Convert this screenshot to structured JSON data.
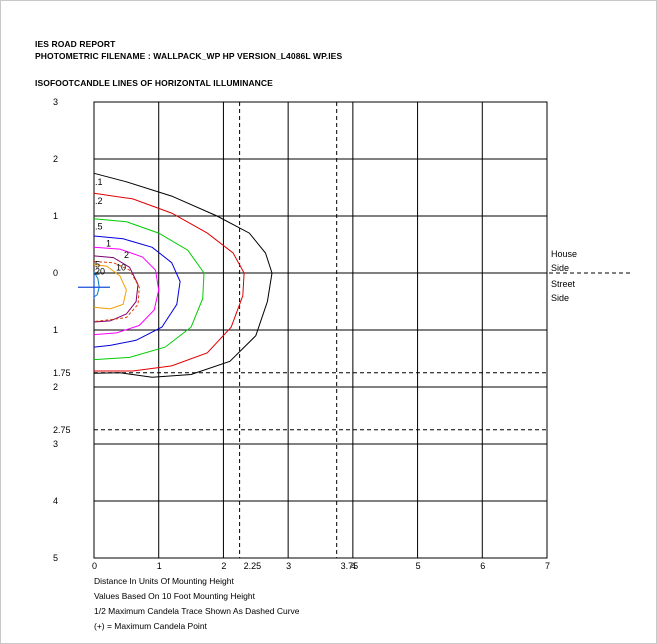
{
  "report": {
    "title": "IES ROAD REPORT",
    "photometric_filename": "PHOTOMETRIC FILENAME : WALLPACK_WP HP VERSION_L4086L WP.IES",
    "subtitle": "ISOFOOTCANDLE LINES OF HORIZONTAL ILLUMINANCE"
  },
  "notes": {
    "line1": "Distance In Units Of Mounting Height",
    "line2": "Values Based On 10 Foot Mounting Height",
    "line3": "1/2 Maximum Candela Trace Shown As Dashed Curve",
    "line4": "(+) = Maximum Candela Point"
  },
  "chart_data": {
    "type": "contour",
    "title": "ISOFOOTCANDLE LINES OF HORIZONTAL ILLUMINANCE",
    "x_range": [
      0,
      7
    ],
    "y_range": [
      -5,
      3
    ],
    "grid": true,
    "x_ticks": [
      "0",
      "1",
      "2",
      "3",
      "4",
      "5",
      "6",
      "7"
    ],
    "x_extra_ticks": [
      "2.25",
      "3.75"
    ],
    "y_ticks": [
      {
        "value": 3,
        "label": "3"
      },
      {
        "value": 2,
        "label": "2"
      },
      {
        "value": 1,
        "label": "1"
      },
      {
        "value": 0,
        "label": "0"
      },
      {
        "value": -1,
        "label": "1"
      },
      {
        "value": -2,
        "label": "2"
      },
      {
        "value": -3,
        "label": "3"
      },
      {
        "value": -4,
        "label": "4"
      },
      {
        "value": -5,
        "label": "5"
      }
    ],
    "y_extra_ticks": [
      {
        "value": -1.75,
        "label": "1.75"
      },
      {
        "value": -2.75,
        "label": "2.75"
      }
    ],
    "vertical_dashed_lines_x": [
      2.25,
      3.75
    ],
    "horizontal_dashed_lines_y": [
      0,
      -1.75,
      -2.75
    ],
    "side_labels": {
      "house_line1": "House",
      "house_line2": "Side",
      "street_line1": "Street",
      "street_line2": "Side"
    },
    "max_candela_point": {
      "x": 0,
      "y": -0.25
    },
    "contours": [
      {
        "label": ".1",
        "color": "#000000",
        "points": [
          [
            0,
            1.75
          ],
          [
            0.5,
            1.6
          ],
          [
            1.2,
            1.35
          ],
          [
            1.9,
            1.0
          ],
          [
            2.4,
            0.7
          ],
          [
            2.65,
            0.35
          ],
          [
            2.75,
            0
          ],
          [
            2.68,
            -0.5
          ],
          [
            2.5,
            -1.1
          ],
          [
            2.1,
            -1.55
          ],
          [
            1.5,
            -1.78
          ],
          [
            0.9,
            -1.83
          ],
          [
            0.4,
            -1.75
          ],
          [
            0,
            -1.76
          ]
        ]
      },
      {
        "label": ".2",
        "color": "#e00000",
        "points": [
          [
            0,
            1.4
          ],
          [
            0.6,
            1.3
          ],
          [
            1.2,
            1.05
          ],
          [
            1.75,
            0.7
          ],
          [
            2.15,
            0.35
          ],
          [
            2.32,
            0
          ],
          [
            2.3,
            -0.4
          ],
          [
            2.12,
            -0.95
          ],
          [
            1.75,
            -1.4
          ],
          [
            1.2,
            -1.63
          ],
          [
            0.6,
            -1.72
          ],
          [
            0,
            -1.72
          ]
        ]
      },
      {
        "label": ".5",
        "color": "#00cc00",
        "points": [
          [
            0,
            0.95
          ],
          [
            0.5,
            0.9
          ],
          [
            1.0,
            0.7
          ],
          [
            1.45,
            0.4
          ],
          [
            1.7,
            0
          ],
          [
            1.68,
            -0.45
          ],
          [
            1.5,
            -0.95
          ],
          [
            1.1,
            -1.3
          ],
          [
            0.55,
            -1.48
          ],
          [
            0,
            -1.52
          ]
        ]
      },
      {
        "label": "1",
        "color": "#0000dd",
        "points": [
          [
            0,
            0.65
          ],
          [
            0.45,
            0.6
          ],
          [
            0.9,
            0.45
          ],
          [
            1.2,
            0.18
          ],
          [
            1.33,
            -0.15
          ],
          [
            1.28,
            -0.55
          ],
          [
            1.05,
            -0.95
          ],
          [
            0.65,
            -1.18
          ],
          [
            0.25,
            -1.27
          ],
          [
            0,
            -1.3
          ]
        ]
      },
      {
        "label": "2",
        "color": "#ff00ff",
        "points": [
          [
            0,
            0.45
          ],
          [
            0.4,
            0.42
          ],
          [
            0.75,
            0.28
          ],
          [
            0.95,
            0.05
          ],
          [
            1.0,
            -0.3
          ],
          [
            0.93,
            -0.65
          ],
          [
            0.7,
            -0.92
          ],
          [
            0.35,
            -1.05
          ],
          [
            0,
            -1.08
          ]
        ]
      },
      {
        "label": "5",
        "color": "#7a006e",
        "points": [
          [
            0,
            0.3
          ],
          [
            0.3,
            0.27
          ],
          [
            0.55,
            0.1
          ],
          [
            0.68,
            -0.2
          ],
          [
            0.65,
            -0.5
          ],
          [
            0.5,
            -0.72
          ],
          [
            0.25,
            -0.84
          ],
          [
            0,
            -0.86
          ]
        ]
      },
      {
        "label": "",
        "color": "#e04000",
        "dashed": true,
        "points": [
          [
            0,
            0.2
          ],
          [
            0.3,
            0.18
          ],
          [
            0.55,
            0.05
          ],
          [
            0.7,
            -0.25
          ],
          [
            0.68,
            -0.55
          ],
          [
            0.5,
            -0.78
          ],
          [
            0.25,
            -0.82
          ],
          [
            0,
            -0.85
          ]
        ]
      },
      {
        "label": "10",
        "color": "#f0a000",
        "points": [
          [
            0,
            0.15
          ],
          [
            0.2,
            0.12
          ],
          [
            0.4,
            -0.05
          ],
          [
            0.5,
            -0.3
          ],
          [
            0.45,
            -0.55
          ],
          [
            0.25,
            -0.63
          ],
          [
            0,
            -0.6
          ]
        ]
      },
      {
        "label": "20",
        "color": "#007cc0",
        "points": [
          [
            0,
            0.02
          ],
          [
            0.06,
            -0.1
          ],
          [
            0.08,
            -0.25
          ],
          [
            0.05,
            -0.38
          ],
          [
            0,
            -0.42
          ]
        ]
      }
    ]
  }
}
